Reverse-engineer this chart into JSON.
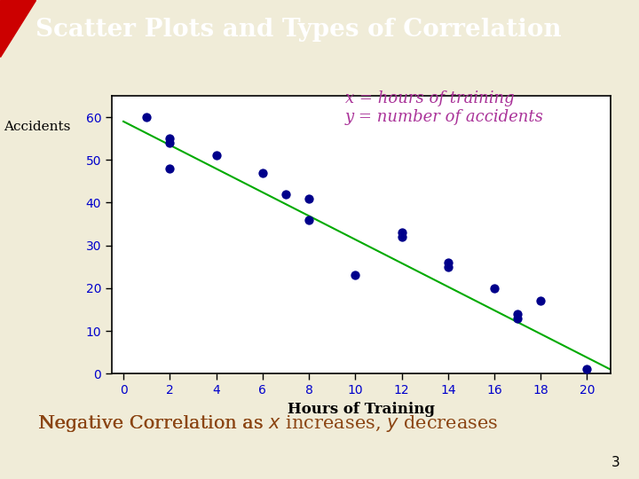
{
  "title": "Scatter Plots and Types of Correlation",
  "title_color": "#FFFFFF",
  "title_bg_color": "#00008B",
  "title_stripe_color": "#E8DEB0",
  "subtitle_text1": "x = hours of training",
  "subtitle_text2": "y = number of accidents",
  "subtitle_color": "#AA3399",
  "ylabel": "Accidents",
  "xlabel": "Hours of Training",
  "tick_label_color": "#0000CC",
  "scatter_x": [
    1,
    2,
    2,
    2,
    4,
    6,
    7,
    8,
    8,
    10,
    12,
    12,
    14,
    14,
    16,
    17,
    17,
    18,
    20
  ],
  "scatter_y": [
    60,
    55,
    54,
    48,
    51,
    47,
    42,
    36,
    41,
    23,
    33,
    32,
    26,
    25,
    20,
    14,
    13,
    17,
    1
  ],
  "dot_color": "#00008B",
  "line_color": "#00AA00",
  "line_x": [
    0,
    21
  ],
  "line_y": [
    59,
    1
  ],
  "xlim": [
    -0.5,
    21
  ],
  "ylim": [
    0,
    65
  ],
  "xticks": [
    0,
    2,
    4,
    6,
    8,
    10,
    12,
    14,
    16,
    18,
    20
  ],
  "yticks": [
    0,
    10,
    20,
    30,
    40,
    50,
    60
  ],
  "bottom_text": "Negative Correlation as ",
  "bottom_italic_x": "x",
  "bottom_mid": " increases, ",
  "bottom_italic_y": "y",
  "bottom_end": " decreases",
  "bottom_color": "#8B4513",
  "page_num": "3",
  "bg_color": "#F0ECD8",
  "plot_bg_color": "#FFFFFF",
  "red_triangle_color": "#CC0000"
}
